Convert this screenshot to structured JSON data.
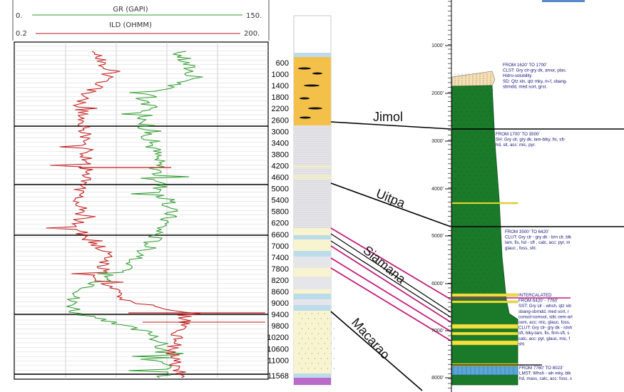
{
  "track_headers": {
    "gr": {
      "name": "GR (GAPI)",
      "min": "0.",
      "max": "150.",
      "color": "#2e9a2e"
    },
    "ild": {
      "name": "ILD (OHMM)",
      "min": "0.2",
      "max": "200.",
      "color": "#c01818"
    }
  },
  "depth_labels": [
    "600",
    "1000",
    "1400",
    "1800",
    "2200",
    "2600",
    "3000",
    "3400",
    "3800",
    "4200",
    "4600",
    "5000",
    "5400",
    "5800",
    "6200",
    "6600",
    "7000",
    "7400",
    "7800",
    "8200",
    "8600",
    "9000",
    "9400",
    "9800",
    "10200",
    "10600",
    "11000",
    "11568"
  ],
  "formations": [
    {
      "name": "Jimol"
    },
    {
      "name": "Uitpa"
    },
    {
      "name": "Siamana"
    },
    {
      "name": "Macarao"
    }
  ],
  "right_column": {
    "depth_ticks": [
      "1000'",
      "2000'",
      "3000'",
      "4000'",
      "5000'",
      "6000'",
      "7000'",
      "8000'"
    ],
    "descriptions": [
      [
        "FROM 1620' TO 1700'",
        "CLST: Gry clr-gry dk, amor, plas.",
        "Hidro-solubility",
        "SD: Qtz xln, qtz mky, m-f, sbang-",
        "sbrndd, med sort, grst."
      ],
      [
        "FROM 1700' TO 3500'",
        "SH: Gry clr, gry dk, lam-blky, fis, sft-",
        "hd, slt, acc: mic, pyr."
      ],
      [
        "FROM 3500' TO 6420'",
        "CLUT: Gry clr - gry dk - brn clr, blk",
        "lam, fis, hd - sft , calc, acc: pyr, m",
        "glauc , foss, shl."
      ],
      [
        "INTERCALATED",
        "FROM 6420' - 7760'",
        "SST: Gry clr - whsh, qtz xln",
        "sbang-sbrndd, med sort, r",
        "consol-comsol, silic cem-arl",
        "cem, acc: mic, glauc, foss,",
        "CLUT: Gry clr- gry dk - rdsh",
        "sft, blky-lam, fis, firm-sft, s",
        "calc, acc: pyr, glauc, mic, f",
        "shl."
      ],
      [
        "FROM 7760' TO 8023'",
        "LMST: Whsh - wh mky, blk",
        "hd, mass, calc, acc: foss, s"
      ]
    ]
  },
  "colors": {
    "gr_curve": "#2e9a2e",
    "ild_curve": "#c01818",
    "sand_yellow": "#f3c14a",
    "shale_gray": "#e6e6ea",
    "light_blue": "#bcdcec",
    "pale_sand": "#f7f4cf",
    "formation_green": "#1a7a2a",
    "magenta_line": "#c21e7a"
  }
}
